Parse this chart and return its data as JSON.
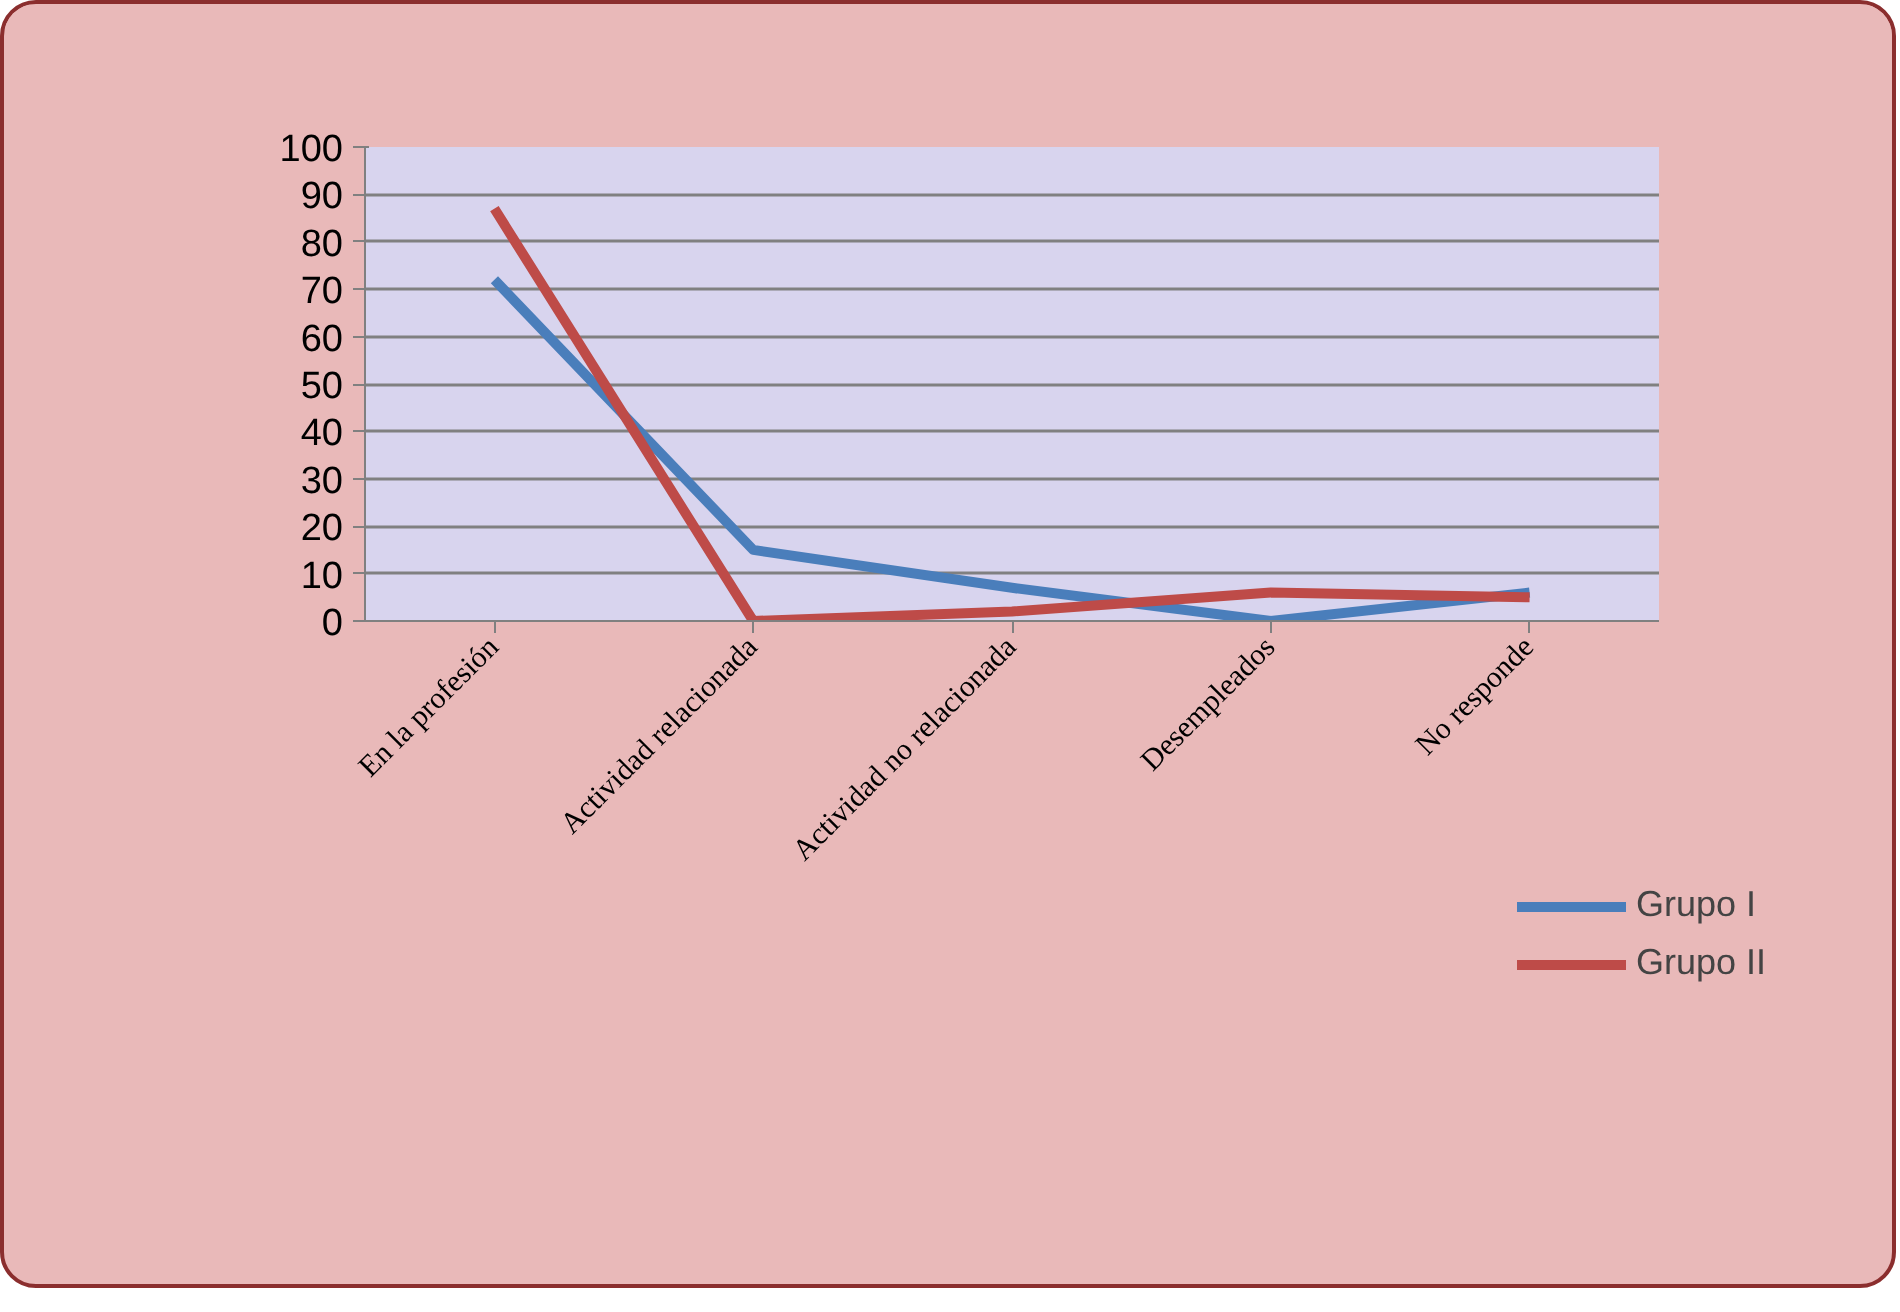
{
  "chart_data": {
    "type": "line",
    "categories": [
      "En la profesión",
      "Actividad relacionada",
      "Actividad no relacionada",
      "Desempleados",
      "No responde"
    ],
    "series": [
      {
        "name": "Grupo I",
        "color": "#4a7ebb",
        "values": [
          72,
          15,
          7,
          0,
          6
        ]
      },
      {
        "name": "Grupo II",
        "color": "#be4b48",
        "values": [
          87,
          0,
          2,
          6,
          5
        ]
      }
    ],
    "ylim": [
      0,
      100
    ],
    "yticks": [
      0,
      10,
      20,
      30,
      40,
      50,
      60,
      70,
      80,
      90,
      100
    ],
    "grid": "y",
    "legend": "bottom right",
    "marker": "none",
    "line_style": "solid"
  }
}
